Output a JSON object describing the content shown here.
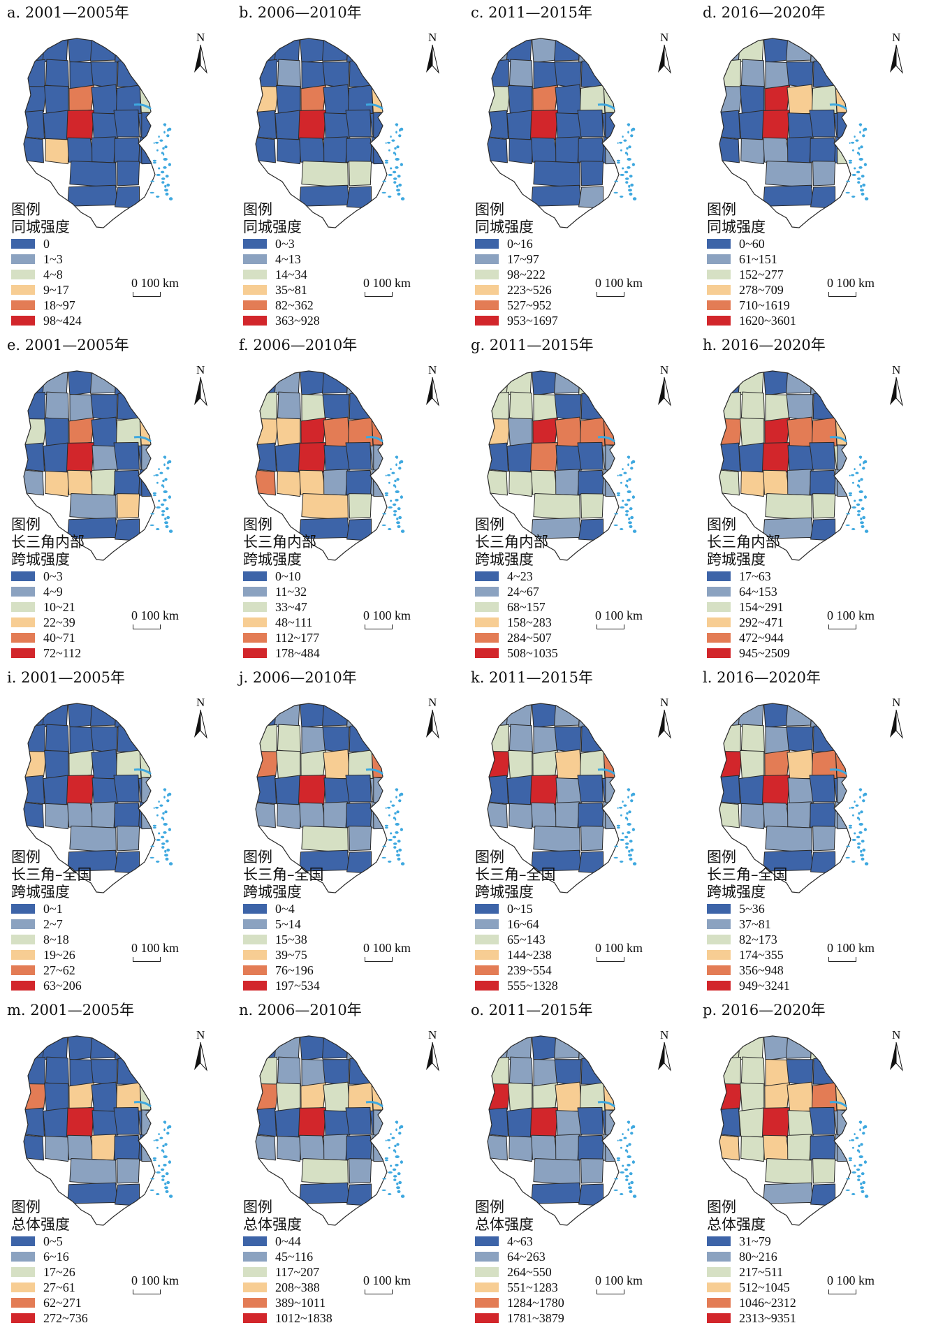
{
  "colors": [
    "#3d64a8",
    "#8ba2c0",
    "#d6e0c4",
    "#f7cd93",
    "#e37c55",
    "#d2262b"
  ],
  "icons": {
    "north_arrow": "north-arrow-icon"
  },
  "north_label": "N",
  "scale_label": "0  100 km",
  "legend_heading": "图例",
  "panels": [
    {
      "title": "a. 2001—2005年",
      "legend_title": [
        "同城强度"
      ],
      "classes": [
        "0",
        "1~3",
        "4~8",
        "9~17",
        "18~97",
        "98~424"
      ],
      "region_classes": [
        0,
        0,
        0,
        0,
        0,
        0,
        0,
        0,
        0,
        0,
        0,
        0,
        0,
        2,
        0,
        0,
        0,
        4,
        0,
        0,
        2,
        0,
        0,
        0,
        5,
        0,
        0,
        0,
        4,
        0,
        3,
        0,
        0,
        0,
        0,
        0,
        0,
        0,
        0,
        0,
        0
      ]
    },
    {
      "title": "b. 2006—2010年",
      "legend_title": [
        "同城强度"
      ],
      "classes": [
        "0~3",
        "4~13",
        "14~34",
        "35~81",
        "82~362",
        "363~928"
      ],
      "region_classes": [
        2,
        0,
        0,
        0,
        0,
        0,
        0,
        0,
        0,
        1,
        0,
        0,
        0,
        3,
        0,
        3,
        0,
        4,
        0,
        0,
        3,
        0,
        0,
        0,
        5,
        0,
        0,
        0,
        4,
        0,
        0,
        0,
        0,
        0,
        0,
        0,
        0,
        2,
        2,
        0,
        0
      ]
    },
    {
      "title": "c. 2011—2015年",
      "legend_title": [
        "同城强度"
      ],
      "classes": [
        "0~16",
        "17~97",
        "98~222",
        "223~526",
        "527~952",
        "953~1697"
      ],
      "region_classes": [
        2,
        1,
        0,
        1,
        0,
        1,
        0,
        0,
        0,
        1,
        0,
        0,
        0,
        2,
        0,
        2,
        0,
        4,
        0,
        2,
        2,
        0,
        0,
        0,
        5,
        0,
        0,
        0,
        3,
        0,
        0,
        0,
        0,
        0,
        0,
        0,
        1,
        0,
        0,
        0,
        1
      ]
    },
    {
      "title": "d. 2016—2020年",
      "legend_title": [
        "同城强度"
      ],
      "classes": [
        "0~60",
        "61~151",
        "152~277",
        "278~709",
        "710~1619",
        "1620~3601"
      ],
      "region_classes": [
        2,
        1,
        2,
        0,
        1,
        1,
        0,
        0,
        2,
        1,
        1,
        0,
        0,
        3,
        0,
        1,
        0,
        5,
        3,
        2,
        3,
        0,
        0,
        0,
        5,
        0,
        0,
        0,
        4,
        0,
        1,
        1,
        0,
        0,
        0,
        0,
        2,
        1,
        1,
        0,
        0
      ]
    },
    {
      "title": "e. 2001—2005年",
      "legend_title": [
        "长三角内部",
        "跨城强度"
      ],
      "classes": [
        "0~3",
        "4~9",
        "10~21",
        "22~39",
        "40~71",
        "72~112"
      ],
      "region_classes": [
        1,
        0,
        1,
        0,
        1,
        0,
        0,
        0,
        0,
        1,
        1,
        0,
        0,
        1,
        0,
        2,
        0,
        4,
        0,
        2,
        3,
        1,
        0,
        0,
        5,
        1,
        0,
        0,
        5,
        1,
        3,
        3,
        2,
        0,
        0,
        1,
        0,
        1,
        3,
        0,
        0
      ]
    },
    {
      "title": "f. 2006—2010年",
      "legend_title": [
        "长三角内部",
        "跨城强度"
      ],
      "classes": [
        "0~10",
        "11~32",
        "33~47",
        "48~111",
        "112~177",
        "178~484"
      ],
      "region_classes": [
        1,
        0,
        1,
        0,
        0,
        1,
        0,
        0,
        2,
        1,
        2,
        0,
        0,
        2,
        0,
        3,
        3,
        5,
        4,
        4,
        4,
        1,
        0,
        0,
        5,
        0,
        0,
        1,
        5,
        4,
        3,
        3,
        1,
        0,
        1,
        1,
        1,
        3,
        2,
        0,
        0
      ]
    },
    {
      "title": "g. 2011—2015年",
      "legend_title": [
        "长三角内部",
        "跨城强度"
      ],
      "classes": [
        "4~23",
        "24~67",
        "68~157",
        "158~283",
        "284~507",
        "508~1035"
      ],
      "region_classes": [
        2,
        2,
        2,
        0,
        1,
        2,
        0,
        1,
        2,
        2,
        2,
        0,
        0,
        3,
        0,
        3,
        1,
        5,
        4,
        4,
        4,
        1,
        0,
        0,
        4,
        0,
        0,
        1,
        5,
        2,
        2,
        2,
        1,
        0,
        1,
        1,
        1,
        2,
        2,
        1,
        0
      ]
    },
    {
      "title": "h. 2016—2020年",
      "legend_title": [
        "长三角内部",
        "跨城强度"
      ],
      "classes": [
        "17~63",
        "64~153",
        "154~291",
        "292~471",
        "472~944",
        "945~2509"
      ],
      "region_classes": [
        1,
        0,
        2,
        0,
        1,
        1,
        0,
        1,
        2,
        2,
        2,
        1,
        0,
        4,
        0,
        4,
        2,
        5,
        4,
        4,
        3,
        1,
        0,
        0,
        5,
        0,
        0,
        2,
        5,
        2,
        3,
        3,
        1,
        0,
        1,
        1,
        1,
        2,
        2,
        1,
        0
      ]
    },
    {
      "title": "i. 2001—2005年",
      "legend_title": [
        "长三角–全国",
        "跨城强度"
      ],
      "classes": [
        "0~1",
        "2~7",
        "8~18",
        "19~26",
        "27~62",
        "63~206"
      ],
      "region_classes": [
        0,
        0,
        0,
        0,
        0,
        0,
        0,
        0,
        0,
        0,
        0,
        0,
        0,
        3,
        0,
        3,
        0,
        2,
        0,
        2,
        2,
        0,
        0,
        0,
        5,
        0,
        0,
        0,
        4,
        0,
        1,
        1,
        1,
        0,
        0,
        1,
        1,
        1,
        1,
        0,
        0
      ]
    },
    {
      "title": "j. 2006—2010年",
      "legend_title": [
        "长三角–全国",
        "跨城强度"
      ],
      "classes": [
        "0~4",
        "5~14",
        "15~38",
        "39~75",
        "76~196",
        "197~534"
      ],
      "region_classes": [
        1,
        0,
        1,
        0,
        0,
        1,
        0,
        0,
        2,
        2,
        1,
        0,
        0,
        3,
        0,
        4,
        2,
        2,
        3,
        2,
        4,
        0,
        0,
        0,
        5,
        0,
        0,
        1,
        4,
        1,
        1,
        1,
        1,
        0,
        1,
        1,
        1,
        2,
        1,
        0,
        0
      ]
    },
    {
      "title": "k. 2011—2015年",
      "legend_title": [
        "长三角–全国",
        "跨城强度"
      ],
      "classes": [
        "0~15",
        "16~64",
        "65~143",
        "144~238",
        "239~554",
        "555~1328"
      ],
      "region_classes": [
        1,
        1,
        1,
        0,
        1,
        1,
        0,
        0,
        2,
        1,
        1,
        0,
        0,
        3,
        0,
        5,
        2,
        2,
        3,
        2,
        4,
        0,
        0,
        0,
        5,
        1,
        0,
        0,
        4,
        1,
        1,
        1,
        1,
        0,
        1,
        1,
        1,
        1,
        1,
        0,
        0
      ]
    },
    {
      "title": "l. 2016—2020年",
      "legend_title": [
        "长三角–全国",
        "跨城强度"
      ],
      "classes": [
        "5~36",
        "37~81",
        "82~173",
        "174~355",
        "356~948",
        "949~3241"
      ],
      "region_classes": [
        3,
        1,
        1,
        0,
        1,
        1,
        0,
        0,
        2,
        2,
        1,
        0,
        0,
        4,
        0,
        5,
        2,
        4,
        3,
        4,
        4,
        1,
        0,
        0,
        5,
        1,
        0,
        0,
        5,
        2,
        1,
        1,
        1,
        0,
        1,
        1,
        1,
        1,
        1,
        0,
        0
      ]
    },
    {
      "title": "m. 2001—2005年",
      "legend_title": [
        "总体强度"
      ],
      "classes": [
        "0~5",
        "6~16",
        "17~26",
        "27~61",
        "62~271",
        "272~736"
      ],
      "region_classes": [
        0,
        0,
        0,
        0,
        0,
        0,
        0,
        0,
        0,
        0,
        0,
        0,
        0,
        3,
        0,
        4,
        0,
        3,
        0,
        3,
        2,
        0,
        0,
        0,
        5,
        0,
        0,
        0,
        4,
        0,
        1,
        1,
        3,
        0,
        0,
        1,
        1,
        1,
        1,
        0,
        0
      ]
    },
    {
      "title": "n. 2006—2010年",
      "legend_title": [
        "总体强度"
      ],
      "classes": [
        "0~44",
        "45~116",
        "117~207",
        "208~388",
        "389~1011",
        "1012~1838"
      ],
      "region_classes": [
        1,
        0,
        1,
        0,
        0,
        1,
        0,
        0,
        2,
        1,
        1,
        0,
        0,
        2,
        0,
        4,
        2,
        3,
        2,
        3,
        3,
        0,
        0,
        0,
        5,
        0,
        0,
        0,
        4,
        1,
        1,
        1,
        1,
        0,
        1,
        1,
        1,
        2,
        1,
        0,
        0
      ]
    },
    {
      "title": "o. 2011—2015年",
      "legend_title": [
        "总体强度"
      ],
      "classes": [
        "4~63",
        "64~263",
        "264~550",
        "551~1283",
        "1284~1780",
        "1781~3879"
      ],
      "region_classes": [
        2,
        1,
        1,
        0,
        1,
        1,
        0,
        0,
        2,
        1,
        1,
        0,
        0,
        2,
        0,
        5,
        2,
        2,
        3,
        2,
        3,
        0,
        0,
        0,
        5,
        1,
        0,
        0,
        4,
        1,
        1,
        1,
        1,
        0,
        1,
        1,
        1,
        1,
        1,
        0,
        0
      ]
    },
    {
      "title": "p. 2016—2020年",
      "legend_title": [
        "总体强度"
      ],
      "classes": [
        "31~79",
        "80~216",
        "217~511",
        "512~1045",
        "1046~2312",
        "2313~9351"
      ],
      "region_classes": [
        3,
        2,
        2,
        1,
        1,
        2,
        0,
        2,
        2,
        2,
        3,
        0,
        0,
        4,
        0,
        5,
        2,
        3,
        3,
        4,
        3,
        1,
        0,
        2,
        5,
        2,
        0,
        1,
        5,
        3,
        2,
        3,
        2,
        0,
        1,
        1,
        1,
        2,
        2,
        1,
        0
      ]
    }
  ]
}
